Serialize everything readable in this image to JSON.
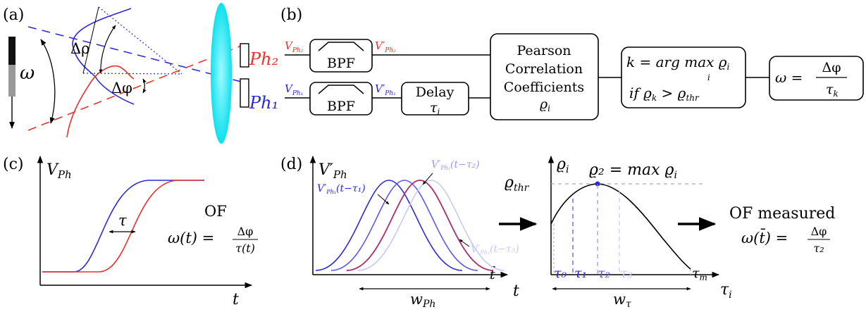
{
  "colors": {
    "red": "#e8322b",
    "blue": "#2a2ad8",
    "blue2": "#5a5ae8",
    "blue3": "#9a9af0",
    "blue4": "#c8c8f6",
    "purple": "#b0306a",
    "lens": "#16e6f0",
    "gray_dash": "#aaaaaa"
  },
  "panels": {
    "a": "(a)",
    "b": "(b)",
    "c": "(c)",
    "d": "(d)"
  },
  "panel_a": {
    "omega": "ω",
    "delta_rho": "Δρ",
    "delta_phi": "Δφ"
  },
  "panel_b": {
    "ph2": "Ph₂",
    "ph1": "Ph₁",
    "v_ph2": "V",
    "v_ph2_sub": "Ph₂",
    "v_ph2p": "V′",
    "v_ph2p_sub": "Ph₂",
    "v_ph1": "V",
    "v_ph1_sub": "Ph₁",
    "v_ph1p": "V′",
    "v_ph1p_sub": "Ph₁",
    "bpf": "BPF",
    "delay_l1": "Delay",
    "delay_l2": "τ",
    "delay_l2_sub": "i",
    "pearson_l1": "Pearson",
    "pearson_l2": "Correlation",
    "pearson_l3": "Coefficients",
    "pearson_l4": "ϱ",
    "pearson_l4_sub": "i",
    "argmax_l1": "k = arg max ϱ",
    "argmax_l1_sub": "i",
    "argmax_under": "i",
    "argmax_l2": "if ϱ",
    "argmax_l2_sub": "k",
    "argmax_l2b": " > ϱ",
    "argmax_l2b_sub": "thr",
    "omega_lhs": "ω =",
    "omega_num": "Δφ",
    "omega_den": "τ",
    "omega_den_sub": "k"
  },
  "panel_c": {
    "ylabel": "V",
    "ylabel_sub": "Ph",
    "xlabel": "t",
    "tau": "τ",
    "of": "OF",
    "of_eq": "ω(t) =",
    "of_num": "Δφ",
    "of_den": "τ(t)"
  },
  "panel_d": {
    "ylabel": "V′",
    "ylabel_sub": "Ph",
    "xlabel": "t",
    "tbar": "t̄",
    "w_ph": "w",
    "w_ph_sub": "Ph",
    "curve_label_1": "V′",
    "curve_label_1_sub": "Ph₁",
    "curve_label_1_arg": "(t−τ₁)",
    "curve_label_2": "V′",
    "curve_label_2_sub": "Ph₁",
    "curve_label_2_arg": "(t−τ₂)",
    "curve_label_3": "V′",
    "curve_label_3_sub": "Ph₁",
    "curve_label_3_arg": "(t−τ₃)",
    "rho_label": "ϱ",
    "rho_label_sub": "i",
    "rho_max": "ϱ₂ = max ϱ",
    "rho_max_sub": "i",
    "rho_thr": "ϱ",
    "rho_thr_sub": "thr",
    "tau0": "τ₀",
    "tau1": "τ₁",
    "tau2": "τ₂",
    "tau3": "τ₃",
    "taum": "τ",
    "taum_sub": "m",
    "taui": "τ",
    "taui_sub": "i",
    "w_tau": "w",
    "w_tau_sub": "τ",
    "of_measured": "OF measured",
    "of_eq": "ω(t̄) =",
    "of_num": "Δφ",
    "of_den": "τ₂"
  }
}
